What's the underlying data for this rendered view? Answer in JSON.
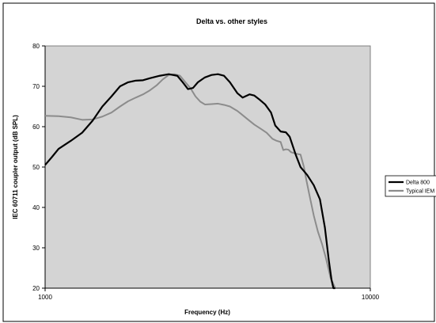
{
  "chart_data": {
    "type": "line",
    "title": "Delta vs. other styles",
    "xlabel": "Frequency (Hz)",
    "ylabel": "IEC 60711 coupler output (dB SPL)",
    "xscale": "log",
    "xlim": [
      1000,
      10000
    ],
    "ylim": [
      20,
      80
    ],
    "x_ticks": [
      "1000",
      "10000"
    ],
    "y_ticks": [
      "20",
      "30",
      "40",
      "50",
      "60",
      "70",
      "80"
    ],
    "grid": false,
    "legend_position": "right",
    "plot_background": "#d4d4d4",
    "series": [
      {
        "name": "Delta 800",
        "color": "#000000",
        "x": [
          1000,
          1050,
          1100,
          1200,
          1300,
          1400,
          1500,
          1600,
          1700,
          1800,
          1900,
          2000,
          2100,
          2250,
          2400,
          2550,
          2650,
          2750,
          2850,
          2950,
          3100,
          3250,
          3400,
          3550,
          3700,
          3900,
          4050,
          4250,
          4400,
          4550,
          4750,
          4950,
          5100,
          5300,
          5500,
          5650,
          5900,
          6100,
          6400,
          6700,
          7000,
          7250,
          7450,
          7600,
          7700,
          7800
        ],
        "y": [
          50.5,
          52.5,
          54.5,
          56.5,
          58.5,
          61.5,
          65,
          67.5,
          70,
          71,
          71.4,
          71.5,
          72,
          72.6,
          73,
          72.6,
          71,
          69.3,
          69.6,
          71,
          72.2,
          72.8,
          73,
          72.6,
          71,
          68.3,
          67.2,
          68,
          67.7,
          66.8,
          65.5,
          63.5,
          60.3,
          58.8,
          58.6,
          57.5,
          53,
          50,
          48,
          45.5,
          42,
          35,
          27,
          22,
          20,
          20
        ]
      },
      {
        "name": "Typical IEM",
        "color": "#8c8c8c",
        "x": [
          1000,
          1100,
          1200,
          1300,
          1400,
          1500,
          1600,
          1700,
          1800,
          1900,
          2000,
          2100,
          2200,
          2300,
          2400,
          2500,
          2600,
          2700,
          2800,
          2900,
          3000,
          3100,
          3250,
          3400,
          3550,
          3700,
          3900,
          4000,
          4200,
          4400,
          4600,
          4800,
          5000,
          5150,
          5300,
          5400,
          5500,
          5600,
          5700,
          5900,
          6100,
          6250,
          6350,
          6500,
          6700,
          6900,
          7100,
          7300,
          7450,
          7550,
          7650,
          7750,
          7800
        ],
        "y": [
          62.7,
          62.6,
          62.3,
          61.7,
          61.8,
          62.5,
          63.5,
          65,
          66.3,
          67.2,
          68,
          69,
          70.2,
          71.7,
          72.8,
          73,
          72.6,
          71,
          69.5,
          67.5,
          66.2,
          65.5,
          65.6,
          65.7,
          65.4,
          65,
          63.9,
          63.2,
          61.8,
          60.5,
          59.5,
          58.5,
          57,
          56.5,
          56.2,
          54.2,
          54.4,
          54.3,
          53.7,
          53.3,
          53.1,
          50,
          47,
          43,
          38,
          34,
          31,
          27.5,
          24.5,
          22.5,
          21.5,
          20.5,
          20
        ]
      }
    ]
  }
}
